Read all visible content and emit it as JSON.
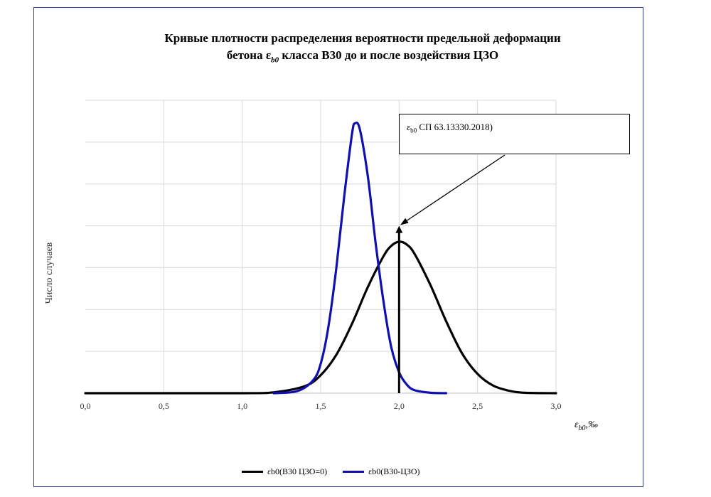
{
  "chart_data": {
    "type": "line",
    "title_line1": "Кривые плотности распределения вероятности предельной деформации",
    "title_line2_pre": "бетона ε",
    "title_line2_sub": "b0",
    "title_line2_post": " класса В30 до и после воздействия ЦЗО",
    "ylabel": "Число случаев",
    "xlabel_main": "ε",
    "xlabel_sub": "b0",
    "xlabel_unit": ",‰",
    "xlim": [
      0,
      3
    ],
    "ylim": [
      0,
      7
    ],
    "x_ticks": [
      "0,0",
      "0,5",
      "1,0",
      "1,5",
      "2,0",
      "2,5",
      "3,0"
    ],
    "y_gridlines": 7,
    "grid": true,
    "legend_position": "bottom",
    "annotation": {
      "text_pre": "ε",
      "text_sub": "b0",
      "text_post": " СП 63.13330.2018)",
      "x": 2.0,
      "y_arrow_tip": 4.0
    },
    "series": [
      {
        "name": "εb0(В30 ЦЗО=0)",
        "color": "#000000",
        "values": [
          {
            "x": 0.0,
            "y": 0.0
          },
          {
            "x": 1.0,
            "y": 0.0
          },
          {
            "x": 1.2,
            "y": 0.02
          },
          {
            "x": 1.4,
            "y": 0.17
          },
          {
            "x": 1.5,
            "y": 0.43
          },
          {
            "x": 1.6,
            "y": 0.92
          },
          {
            "x": 1.7,
            "y": 1.66
          },
          {
            "x": 1.8,
            "y": 2.53
          },
          {
            "x": 1.9,
            "y": 3.27
          },
          {
            "x": 1.95,
            "y": 3.52
          },
          {
            "x": 2.0,
            "y": 3.62
          },
          {
            "x": 2.05,
            "y": 3.55
          },
          {
            "x": 2.1,
            "y": 3.32
          },
          {
            "x": 2.2,
            "y": 2.58
          },
          {
            "x": 2.3,
            "y": 1.72
          },
          {
            "x": 2.4,
            "y": 0.96
          },
          {
            "x": 2.5,
            "y": 0.46
          },
          {
            "x": 2.6,
            "y": 0.18
          },
          {
            "x": 2.7,
            "y": 0.06
          },
          {
            "x": 2.8,
            "y": 0.01
          },
          {
            "x": 3.0,
            "y": 0.0
          }
        ]
      },
      {
        "name": "εb0(В30-ЦЗО)",
        "color": "#1010b0",
        "values": [
          {
            "x": 1.2,
            "y": 0.0
          },
          {
            "x": 1.35,
            "y": 0.05
          },
          {
            "x": 1.45,
            "y": 0.3
          },
          {
            "x": 1.5,
            "y": 0.7
          },
          {
            "x": 1.55,
            "y": 1.6
          },
          {
            "x": 1.6,
            "y": 3.0
          },
          {
            "x": 1.65,
            "y": 4.7
          },
          {
            "x": 1.7,
            "y": 6.2
          },
          {
            "x": 1.72,
            "y": 6.45
          },
          {
            "x": 1.75,
            "y": 6.3
          },
          {
            "x": 1.8,
            "y": 5.2
          },
          {
            "x": 1.85,
            "y": 3.6
          },
          {
            "x": 1.9,
            "y": 2.2
          },
          {
            "x": 1.95,
            "y": 1.1
          },
          {
            "x": 2.0,
            "y": 0.5
          },
          {
            "x": 2.05,
            "y": 0.2
          },
          {
            "x": 2.1,
            "y": 0.07
          },
          {
            "x": 2.2,
            "y": 0.01
          },
          {
            "x": 2.3,
            "y": 0.0
          }
        ]
      }
    ]
  }
}
